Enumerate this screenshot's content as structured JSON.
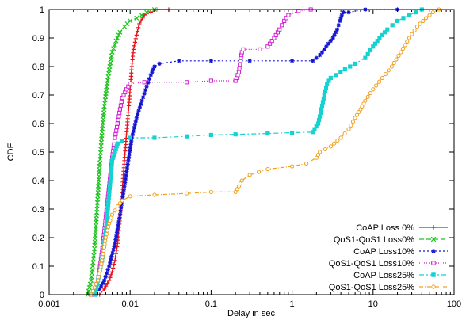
{
  "chart_data": {
    "type": "line",
    "xlabel": "Delay in sec",
    "ylabel": "CDF",
    "xscale": "log",
    "xlim": [
      0.001,
      100
    ],
    "ylim": [
      0,
      1
    ],
    "x_tick_labels": [
      "0.001",
      "0.01",
      "0.1",
      "1",
      "10",
      "100"
    ],
    "y_tick_labels": [
      "0",
      "0.1",
      "0.2",
      "0.3",
      "0.4",
      "0.5",
      "0.6",
      "0.7",
      "0.8",
      "0.9",
      "1"
    ],
    "legend_position": "bottom-right",
    "grid": false,
    "series": [
      {
        "name": "CoAP Loss 0%",
        "color": "#e8141b",
        "dash": "solid",
        "marker": "plus",
        "points": [
          [
            0.0042,
            0
          ],
          [
            0.0048,
            0.02
          ],
          [
            0.0055,
            0.05
          ],
          [
            0.006,
            0.08
          ],
          [
            0.0065,
            0.12
          ],
          [
            0.007,
            0.18
          ],
          [
            0.0075,
            0.27
          ],
          [
            0.008,
            0.37
          ],
          [
            0.0085,
            0.47
          ],
          [
            0.009,
            0.56
          ],
          [
            0.0095,
            0.64
          ],
          [
            0.01,
            0.72
          ],
          [
            0.0105,
            0.8
          ],
          [
            0.011,
            0.86
          ],
          [
            0.012,
            0.91
          ],
          [
            0.013,
            0.95
          ],
          [
            0.015,
            0.98
          ],
          [
            0.018,
            0.99
          ],
          [
            0.022,
            1.0
          ],
          [
            0.03,
            1.0
          ]
        ]
      },
      {
        "name": "QoS1-QoS1 Loss0%",
        "color": "#1ec41e",
        "dash": "6,3",
        "marker": "cross",
        "points": [
          [
            0.003,
            0
          ],
          [
            0.0033,
            0.05
          ],
          [
            0.0036,
            0.15
          ],
          [
            0.0039,
            0.3
          ],
          [
            0.0042,
            0.45
          ],
          [
            0.0045,
            0.57
          ],
          [
            0.0048,
            0.66
          ],
          [
            0.0052,
            0.74
          ],
          [
            0.0056,
            0.8
          ],
          [
            0.006,
            0.85
          ],
          [
            0.0067,
            0.89
          ],
          [
            0.0075,
            0.92
          ],
          [
            0.0085,
            0.94
          ],
          [
            0.01,
            0.96
          ],
          [
            0.012,
            0.97
          ],
          [
            0.016,
            0.99
          ],
          [
            0.02,
            1.0
          ]
        ]
      },
      {
        "name": "CoAP Loss10%",
        "color": "#1414d2",
        "dash": "2,3",
        "marker": "star",
        "points": [
          [
            0.0038,
            0
          ],
          [
            0.0042,
            0.02
          ],
          [
            0.0048,
            0.05
          ],
          [
            0.0055,
            0.1
          ],
          [
            0.0065,
            0.18
          ],
          [
            0.0075,
            0.28
          ],
          [
            0.0085,
            0.38
          ],
          [
            0.0095,
            0.47
          ],
          [
            0.0105,
            0.55
          ],
          [
            0.012,
            0.62
          ],
          [
            0.014,
            0.68
          ],
          [
            0.016,
            0.73
          ],
          [
            0.018,
            0.77
          ],
          [
            0.02,
            0.8
          ],
          [
            0.023,
            0.81
          ],
          [
            0.04,
            0.82
          ],
          [
            0.1,
            0.82
          ],
          [
            0.3,
            0.82
          ],
          [
            1.0,
            0.82
          ],
          [
            1.8,
            0.82
          ],
          [
            2.2,
            0.84
          ],
          [
            2.5,
            0.86
          ],
          [
            2.8,
            0.88
          ],
          [
            3.2,
            0.9
          ],
          [
            3.6,
            0.93
          ],
          [
            3.9,
            0.96
          ],
          [
            4.1,
            0.98
          ],
          [
            4.3,
            0.99
          ],
          [
            5.0,
            0.99
          ],
          [
            8.0,
            1.0
          ],
          [
            20.0,
            1.0
          ]
        ]
      },
      {
        "name": "QoS1-QoS1 Loss10%",
        "color": "#d21ed2",
        "dash": "1,2",
        "marker": "square-open",
        "points": [
          [
            0.0035,
            0
          ],
          [
            0.004,
            0.05
          ],
          [
            0.0045,
            0.15
          ],
          [
            0.005,
            0.27
          ],
          [
            0.0055,
            0.38
          ],
          [
            0.006,
            0.48
          ],
          [
            0.0065,
            0.55
          ],
          [
            0.007,
            0.6
          ],
          [
            0.0075,
            0.65
          ],
          [
            0.008,
            0.69
          ],
          [
            0.009,
            0.72
          ],
          [
            0.01,
            0.74
          ],
          [
            0.015,
            0.745
          ],
          [
            0.05,
            0.745
          ],
          [
            0.1,
            0.75
          ],
          [
            0.2,
            0.75
          ],
          [
            0.22,
            0.78
          ],
          [
            0.23,
            0.82
          ],
          [
            0.24,
            0.85
          ],
          [
            0.25,
            0.86
          ],
          [
            0.4,
            0.86
          ],
          [
            0.5,
            0.87
          ],
          [
            0.6,
            0.9
          ],
          [
            0.7,
            0.93
          ],
          [
            0.8,
            0.96
          ],
          [
            0.9,
            0.98
          ],
          [
            1.2,
            0.995
          ],
          [
            1.7,
            1.0
          ]
        ]
      },
      {
        "name": "CoAP Loss25%",
        "color": "#14d2d2",
        "dash": "6,3,2,3",
        "marker": "square-filled",
        "points": [
          [
            0.0037,
            0
          ],
          [
            0.004,
            0.05
          ],
          [
            0.0045,
            0.12
          ],
          [
            0.005,
            0.22
          ],
          [
            0.0055,
            0.35
          ],
          [
            0.006,
            0.47
          ],
          [
            0.0065,
            0.5
          ],
          [
            0.007,
            0.53
          ],
          [
            0.008,
            0.54
          ],
          [
            0.01,
            0.55
          ],
          [
            0.02,
            0.55
          ],
          [
            0.05,
            0.555
          ],
          [
            0.1,
            0.56
          ],
          [
            0.2,
            0.562
          ],
          [
            0.5,
            0.565
          ],
          [
            1.0,
            0.568
          ],
          [
            1.8,
            0.57
          ],
          [
            2.1,
            0.6
          ],
          [
            2.3,
            0.65
          ],
          [
            2.5,
            0.7
          ],
          [
            2.7,
            0.74
          ],
          [
            3.0,
            0.76
          ],
          [
            3.5,
            0.77
          ],
          [
            4.5,
            0.79
          ],
          [
            6.0,
            0.81
          ],
          [
            8.0,
            0.83
          ],
          [
            10.0,
            0.87
          ],
          [
            12.0,
            0.9
          ],
          [
            15.0,
            0.93
          ],
          [
            20.0,
            0.96
          ],
          [
            28.0,
            0.98
          ],
          [
            40.0,
            1.0
          ]
        ]
      },
      {
        "name": "QoS1-QoS1 Loss25%",
        "color": "#f0a01e",
        "dash": "5,2,1,2",
        "marker": "circle-open",
        "points": [
          [
            0.0033,
            0
          ],
          [
            0.004,
            0.05
          ],
          [
            0.0045,
            0.12
          ],
          [
            0.005,
            0.2
          ],
          [
            0.0055,
            0.25
          ],
          [
            0.006,
            0.28
          ],
          [
            0.007,
            0.31
          ],
          [
            0.008,
            0.33
          ],
          [
            0.01,
            0.345
          ],
          [
            0.02,
            0.35
          ],
          [
            0.05,
            0.355
          ],
          [
            0.1,
            0.36
          ],
          [
            0.2,
            0.36
          ],
          [
            0.22,
            0.38
          ],
          [
            0.24,
            0.4
          ],
          [
            0.3,
            0.42
          ],
          [
            0.5,
            0.44
          ],
          [
            1.0,
            0.45
          ],
          [
            1.5,
            0.46
          ],
          [
            2.0,
            0.48
          ],
          [
            2.2,
            0.5
          ],
          [
            3.0,
            0.52
          ],
          [
            4.0,
            0.55
          ],
          [
            5.0,
            0.58
          ],
          [
            6.0,
            0.62
          ],
          [
            7.0,
            0.65
          ],
          [
            8.0,
            0.68
          ],
          [
            10.0,
            0.72
          ],
          [
            13.0,
            0.76
          ],
          [
            17.0,
            0.8
          ],
          [
            22.0,
            0.85
          ],
          [
            28.0,
            0.9
          ],
          [
            35.0,
            0.94
          ],
          [
            45.0,
            0.97
          ],
          [
            55.0,
            0.99
          ],
          [
            65.0,
            1.0
          ]
        ]
      }
    ]
  }
}
